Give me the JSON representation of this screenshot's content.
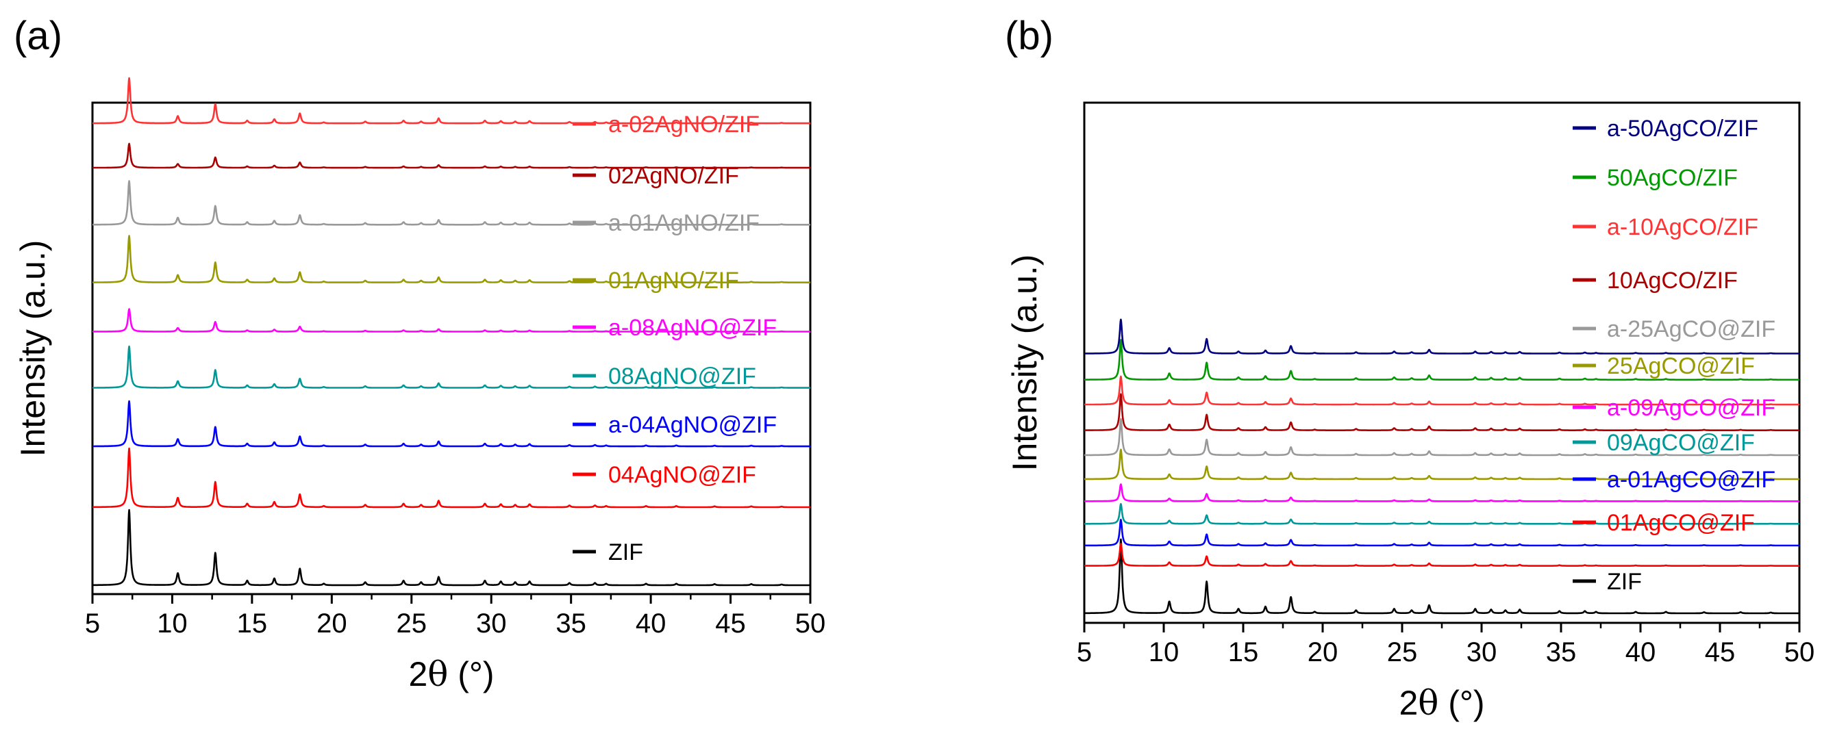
{
  "figure": {
    "panels": [
      {
        "label": "(a)",
        "xlabel_prefix": "2",
        "xlabel_symbol": "θ",
        "xlabel_suffix": " (°)",
        "ylabel": "Intensity (a.u.)"
      },
      {
        "label": "(b)",
        "xlabel_prefix": "2",
        "xlabel_symbol": "θ",
        "xlabel_suffix": " (°)",
        "ylabel": "Intensity (a.u.)"
      }
    ]
  },
  "chart_data": [
    {
      "type": "line",
      "panel_label": "(a)",
      "title": "",
      "xlabel": "2θ (°)",
      "ylabel": "Intensity (a.u.)",
      "xlim": [
        5,
        50
      ],
      "xticks": [
        5,
        10,
        15,
        20,
        25,
        30,
        35,
        40,
        45,
        50
      ],
      "yticks_shown": false,
      "series": [
        {
          "name": "ZIF",
          "color": "#000000",
          "offset": 0.0,
          "scale": 1.0
        },
        {
          "name": "04AgNO@ZIF",
          "color": "#ff0000",
          "offset": 1.0,
          "scale": 0.78
        },
        {
          "name": "a-04AgNO@ZIF",
          "color": "#0000ff",
          "offset": 1.78,
          "scale": 0.6
        },
        {
          "name": "08AgNO@ZIF",
          "color": "#009999",
          "offset": 2.53,
          "scale": 0.55
        },
        {
          "name": "a-08AgNO@ZIF",
          "color": "#ff00ff",
          "offset": 3.25,
          "scale": 0.3
        },
        {
          "name": "01AgNO/ZIF",
          "color": "#999900",
          "offset": 3.88,
          "scale": 0.62
        },
        {
          "name": "a-01AgNO/ZIF",
          "color": "#999999",
          "offset": 4.62,
          "scale": 0.58
        },
        {
          "name": "02AgNO/ZIF",
          "color": "#aa0000",
          "offset": 5.35,
          "scale": 0.32
        },
        {
          "name": "a-02AgNO/ZIF",
          "color": "#ff3333",
          "offset": 5.92,
          "scale": 0.6
        }
      ]
    },
    {
      "type": "line",
      "panel_label": "(b)",
      "title": "",
      "xlabel": "2θ (°)",
      "ylabel": "Intensity (a.u.)",
      "xlim": [
        5,
        50
      ],
      "xticks": [
        5,
        10,
        15,
        20,
        25,
        30,
        35,
        40,
        45,
        50
      ],
      "yticks_shown": false,
      "series": [
        {
          "name": "ZIF",
          "color": "#000000",
          "offset": 0.0,
          "scale": 1.0
        },
        {
          "name": "01AgCO@ZIF",
          "color": "#ff0000",
          "offset": 1.05,
          "scale": 0.3
        },
        {
          "name": "a-01AgCO@ZIF",
          "color": "#0000ff",
          "offset": 1.5,
          "scale": 0.35
        },
        {
          "name": "09AgCO@ZIF",
          "color": "#009999",
          "offset": 1.98,
          "scale": 0.27
        },
        {
          "name": "a-09AgCO@ZIF",
          "color": "#ff00ff",
          "offset": 2.48,
          "scale": 0.23
        },
        {
          "name": "25AgCO@ZIF",
          "color": "#999900",
          "offset": 2.97,
          "scale": 0.4
        },
        {
          "name": "a-25AgCO@ZIF",
          "color": "#999999",
          "offset": 3.5,
          "scale": 0.49
        },
        {
          "name": "10AgCO/ZIF",
          "color": "#aa0000",
          "offset": 4.05,
          "scale": 0.49
        },
        {
          "name": "a-10AgCO/ZIF",
          "color": "#ff3333",
          "offset": 4.62,
          "scale": 0.38
        },
        {
          "name": "50AgCO/ZIF",
          "color": "#009900",
          "offset": 5.17,
          "scale": 0.54
        },
        {
          "name": "a-50AgCO/ZIF",
          "color": "#000080",
          "offset": 5.75,
          "scale": 0.46
        }
      ]
    }
  ],
  "zif_peaks": [
    {
      "x": 7.3,
      "h": 1.0,
      "w": 0.09
    },
    {
      "x": 10.35,
      "h": 0.16,
      "w": 0.09
    },
    {
      "x": 12.7,
      "h": 0.43,
      "w": 0.09
    },
    {
      "x": 14.7,
      "h": 0.06,
      "w": 0.08
    },
    {
      "x": 16.4,
      "h": 0.09,
      "w": 0.08
    },
    {
      "x": 18.0,
      "h": 0.22,
      "w": 0.09
    },
    {
      "x": 19.5,
      "h": 0.02,
      "w": 0.08
    },
    {
      "x": 22.1,
      "h": 0.04,
      "w": 0.08
    },
    {
      "x": 24.5,
      "h": 0.06,
      "w": 0.08
    },
    {
      "x": 25.6,
      "h": 0.04,
      "w": 0.08
    },
    {
      "x": 26.7,
      "h": 0.11,
      "w": 0.08
    },
    {
      "x": 29.6,
      "h": 0.06,
      "w": 0.08
    },
    {
      "x": 30.6,
      "h": 0.05,
      "w": 0.08
    },
    {
      "x": 31.5,
      "h": 0.04,
      "w": 0.08
    },
    {
      "x": 32.4,
      "h": 0.05,
      "w": 0.08
    },
    {
      "x": 34.9,
      "h": 0.03,
      "w": 0.08
    },
    {
      "x": 36.5,
      "h": 0.03,
      "w": 0.08
    },
    {
      "x": 37.2,
      "h": 0.02,
      "w": 0.08
    },
    {
      "x": 39.7,
      "h": 0.02,
      "w": 0.08
    },
    {
      "x": 41.6,
      "h": 0.02,
      "w": 0.08
    },
    {
      "x": 44.0,
      "h": 0.015,
      "w": 0.08
    },
    {
      "x": 46.3,
      "h": 0.015,
      "w": 0.08
    },
    {
      "x": 48.2,
      "h": 0.01,
      "w": 0.08
    }
  ]
}
